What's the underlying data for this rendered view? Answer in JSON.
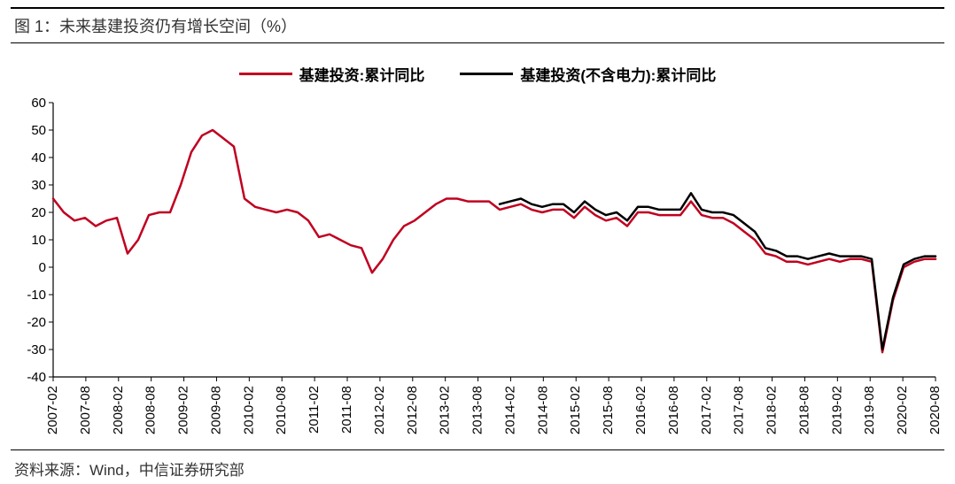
{
  "title": "图 1：未来基建投资仍有增长空间（%）",
  "source": "资料来源：Wind，中信证券研究部",
  "chart": {
    "type": "line",
    "background_color": "#ffffff",
    "axis_color": "#000000",
    "title_fontsize": 18,
    "label_fontsize": 15,
    "line_width": 2.5,
    "ylim": [
      -40,
      60
    ],
    "ytick_step": 10,
    "yticks": [
      -40,
      -30,
      -20,
      -10,
      0,
      10,
      20,
      30,
      40,
      50,
      60
    ],
    "x_categories": [
      "2007-02",
      "2007-08",
      "2008-02",
      "2008-08",
      "2009-02",
      "2009-08",
      "2010-02",
      "2010-08",
      "2011-02",
      "2011-08",
      "2012-02",
      "2012-08",
      "2013-02",
      "2013-08",
      "2014-02",
      "2014-08",
      "2015-02",
      "2015-08",
      "2016-02",
      "2016-08",
      "2017-02",
      "2017-08",
      "2018-02",
      "2018-08",
      "2019-02",
      "2019-08",
      "2020-02",
      "2020-08"
    ],
    "legend": [
      {
        "label": "基建投资:累计同比",
        "color": "#c00020"
      },
      {
        "label": "基建投资(不含电力):累计同比",
        "color": "#000000"
      }
    ],
    "series": [
      {
        "name": "基建投资:累计同比",
        "color": "#c00020",
        "data": [
          [
            0,
            25
          ],
          [
            1,
            20
          ],
          [
            2,
            17
          ],
          [
            3,
            18
          ],
          [
            4,
            15
          ],
          [
            5,
            17
          ],
          [
            6,
            18
          ],
          [
            7,
            5
          ],
          [
            8,
            10
          ],
          [
            9,
            19
          ],
          [
            10,
            20
          ],
          [
            11,
            20
          ],
          [
            12,
            30
          ],
          [
            13,
            42
          ],
          [
            14,
            48
          ],
          [
            15,
            50
          ],
          [
            16,
            47
          ],
          [
            17,
            44
          ],
          [
            18,
            25
          ],
          [
            19,
            22
          ],
          [
            20,
            21
          ],
          [
            21,
            20
          ],
          [
            22,
            21
          ],
          [
            23,
            20
          ],
          [
            24,
            17
          ],
          [
            25,
            11
          ],
          [
            26,
            12
          ],
          [
            27,
            10
          ],
          [
            28,
            8
          ],
          [
            29,
            7
          ],
          [
            30,
            -2
          ],
          [
            31,
            3
          ],
          [
            32,
            10
          ],
          [
            33,
            15
          ],
          [
            34,
            17
          ],
          [
            35,
            20
          ],
          [
            36,
            23
          ],
          [
            37,
            25
          ],
          [
            38,
            25
          ],
          [
            39,
            24
          ],
          [
            40,
            24
          ],
          [
            41,
            24
          ],
          [
            42,
            21
          ],
          [
            43,
            22
          ],
          [
            44,
            23
          ],
          [
            45,
            21
          ],
          [
            46,
            20
          ],
          [
            47,
            21
          ],
          [
            48,
            21
          ],
          [
            49,
            18
          ],
          [
            50,
            22
          ],
          [
            51,
            19
          ],
          [
            52,
            17
          ],
          [
            53,
            18
          ],
          [
            54,
            15
          ],
          [
            55,
            20
          ],
          [
            56,
            20
          ],
          [
            57,
            19
          ],
          [
            58,
            19
          ],
          [
            59,
            19
          ],
          [
            60,
            24
          ],
          [
            61,
            19
          ],
          [
            62,
            18
          ],
          [
            63,
            18
          ],
          [
            64,
            16
          ],
          [
            65,
            13
          ],
          [
            66,
            10
          ],
          [
            67,
            5
          ],
          [
            68,
            4
          ],
          [
            69,
            2
          ],
          [
            70,
            2
          ],
          [
            71,
            1
          ],
          [
            72,
            2
          ],
          [
            73,
            3
          ],
          [
            74,
            2
          ],
          [
            75,
            3
          ],
          [
            76,
            3
          ],
          [
            77,
            2
          ],
          [
            78,
            -31
          ],
          [
            79,
            -12
          ],
          [
            80,
            0
          ],
          [
            81,
            2
          ],
          [
            82,
            3
          ],
          [
            83,
            3
          ]
        ]
      },
      {
        "name": "基建投资(不含电力):累计同比",
        "color": "#000000",
        "data": [
          [
            42,
            23
          ],
          [
            43,
            24
          ],
          [
            44,
            25
          ],
          [
            45,
            23
          ],
          [
            46,
            22
          ],
          [
            47,
            23
          ],
          [
            48,
            23
          ],
          [
            49,
            20
          ],
          [
            50,
            24
          ],
          [
            51,
            21
          ],
          [
            52,
            19
          ],
          [
            53,
            20
          ],
          [
            54,
            17
          ],
          [
            55,
            22
          ],
          [
            56,
            22
          ],
          [
            57,
            21
          ],
          [
            58,
            21
          ],
          [
            59,
            21
          ],
          [
            60,
            27
          ],
          [
            61,
            21
          ],
          [
            62,
            20
          ],
          [
            63,
            20
          ],
          [
            64,
            19
          ],
          [
            65,
            16
          ],
          [
            66,
            13
          ],
          [
            67,
            7
          ],
          [
            68,
            6
          ],
          [
            69,
            4
          ],
          [
            70,
            4
          ],
          [
            71,
            3
          ],
          [
            72,
            4
          ],
          [
            73,
            5
          ],
          [
            74,
            4
          ],
          [
            75,
            4
          ],
          [
            76,
            4
          ],
          [
            77,
            3
          ],
          [
            78,
            -30
          ],
          [
            79,
            -11
          ],
          [
            80,
            1
          ],
          [
            81,
            3
          ],
          [
            82,
            4
          ],
          [
            83,
            4
          ]
        ]
      }
    ],
    "x_tick_count": 28,
    "x_data_count": 84
  }
}
